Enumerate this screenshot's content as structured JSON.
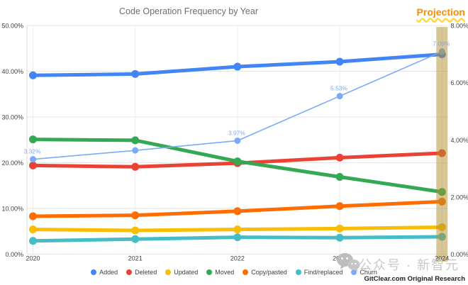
{
  "title": "Code Operation Frequency by Year",
  "projection_label": "Projection",
  "watermark": {
    "text": "公众号 · 新智元",
    "icon": "wechat-icon"
  },
  "credit": "GitClear.com Original Research",
  "chart_data": {
    "type": "line",
    "x": [
      "2020",
      "2021",
      "2022",
      "2023",
      "2024"
    ],
    "left_axis": {
      "ticks": [
        "50.00%",
        "40.00%",
        "30.00%",
        "20.00%",
        "10.00%",
        "0.00%"
      ],
      "tick_values": [
        50,
        40,
        30,
        20,
        10,
        0
      ],
      "range": [
        0,
        50
      ]
    },
    "right_axis": {
      "ticks": [
        "8.00%",
        "6.00%",
        "4.00%",
        "2.00%",
        "0.00%"
      ],
      "tick_values": [
        8,
        6,
        4,
        2,
        0
      ],
      "range": [
        0,
        8
      ]
    },
    "series": [
      {
        "name": "Added",
        "color": "#4285F4",
        "axis": "left",
        "values": [
          39.1,
          39.4,
          41.0,
          42.1,
          43.7
        ]
      },
      {
        "name": "Deleted",
        "color": "#EA4335",
        "axis": "left",
        "values": [
          19.4,
          19.1,
          19.9,
          21.1,
          22.1
        ]
      },
      {
        "name": "Updated",
        "color": "#FBBC04",
        "axis": "left",
        "values": [
          5.4,
          5.2,
          5.4,
          5.6,
          5.9
        ]
      },
      {
        "name": "Moved",
        "color": "#34A853",
        "axis": "left",
        "values": [
          25.1,
          24.9,
          20.3,
          16.9,
          13.6
        ]
      },
      {
        "name": "Copy/pasted",
        "color": "#FF6D01",
        "axis": "left",
        "values": [
          8.3,
          8.5,
          9.4,
          10.5,
          11.5
        ]
      },
      {
        "name": "Find/replaced",
        "color": "#46BDC6",
        "axis": "left",
        "values": [
          2.9,
          3.3,
          3.7,
          3.6,
          3.8
        ]
      },
      {
        "name": "Churn",
        "color": "#7BAAF7",
        "axis": "right",
        "values": [
          3.32,
          3.63,
          3.97,
          5.53,
          7.09
        ],
        "point_labels": [
          "3.32%",
          null,
          "3.97%",
          "5.53%",
          "7.09%"
        ]
      }
    ],
    "projection_band": {
      "x_label": "2024",
      "color_rgb": "178,142,45",
      "opacity": 0.5
    }
  }
}
